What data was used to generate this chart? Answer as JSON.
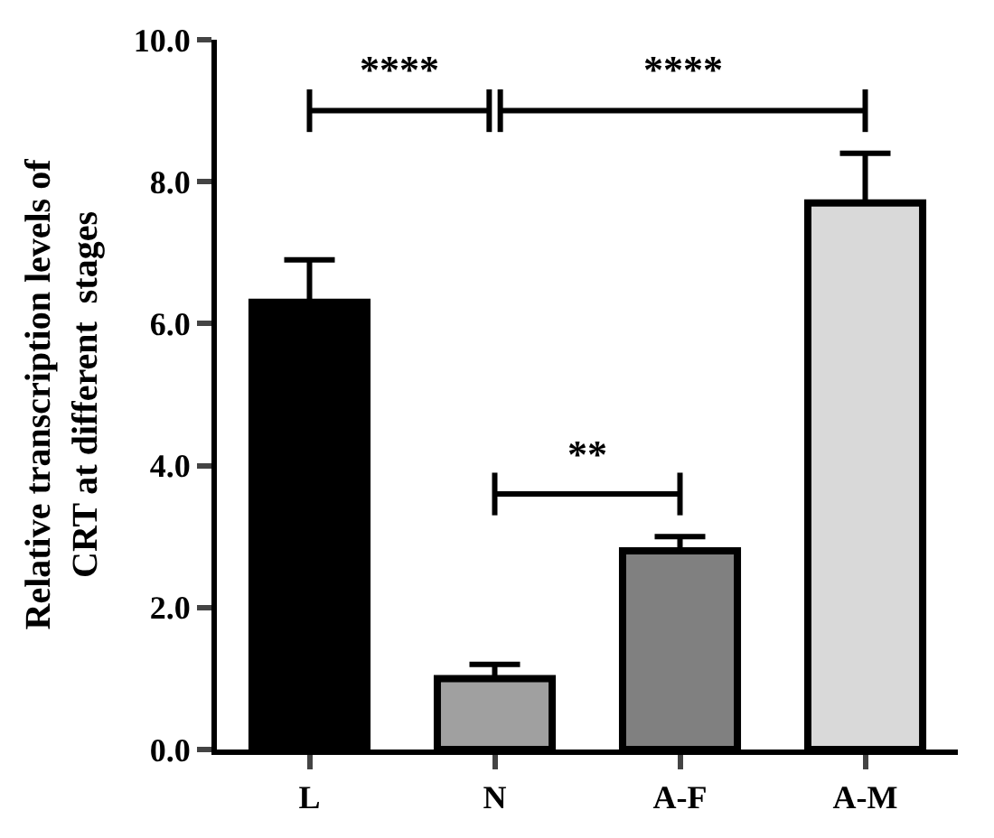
{
  "chart_data": {
    "type": "bar",
    "ylabel": "Relative transcription levels of\nCRT at different  stages",
    "categories": [
      "L",
      "N",
      "A-F",
      "A-M"
    ],
    "values": [
      6.3,
      1.0,
      2.8,
      7.7
    ],
    "colors": [
      "#000000",
      "#a0a0a0",
      "#808080",
      "#d9d9d9"
    ],
    "errors": [
      [
        6.3,
        6.9
      ],
      [
        1.0,
        1.2
      ],
      [
        2.8,
        3.0
      ],
      [
        7.7,
        8.4
      ]
    ],
    "ylim": [
      0,
      10
    ],
    "yticks": [
      {
        "value": 0,
        "label": "0.0"
      },
      {
        "value": 2,
        "label": "2.0"
      },
      {
        "value": 4,
        "label": "4.0"
      },
      {
        "value": 6,
        "label": "6.0"
      },
      {
        "value": 8,
        "label": "8.0"
      },
      {
        "value": 10,
        "label": "10.0"
      }
    ],
    "legend": false,
    "annotations": [
      "****",
      "****",
      "**"
    ]
  }
}
